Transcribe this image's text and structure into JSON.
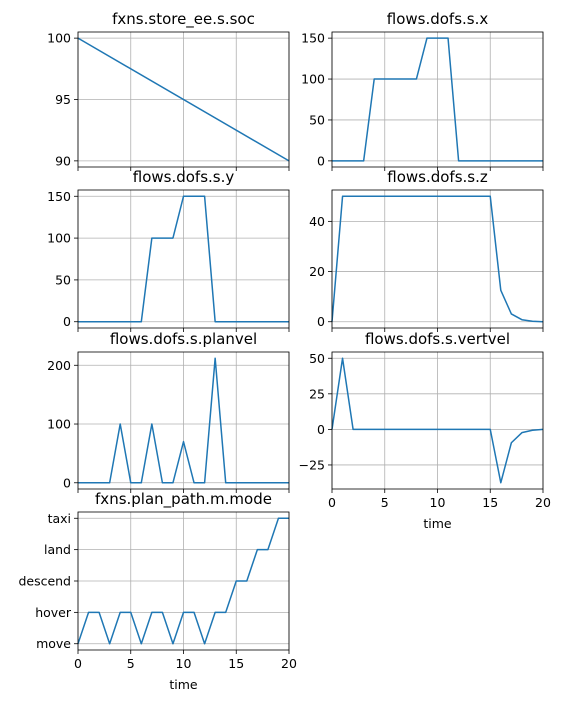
{
  "colors": {
    "line": "#1f77b4",
    "grid": "#b0b0b0",
    "axes": "#000000",
    "background": "#ffffff"
  },
  "chart_data": [
    {
      "type": "line",
      "title": "fxns.store_ee.s.soc",
      "xlabel": "",
      "ylabel": "",
      "x": [
        0,
        20
      ],
      "series": [
        {
          "values": [
            100,
            90
          ]
        }
      ],
      "xlim": [
        0,
        20
      ],
      "ylim": [
        89.5,
        100.5
      ],
      "xticks": [
        0,
        5,
        10,
        15,
        20
      ],
      "xticklabels_visible": false,
      "yticks": [
        90,
        95,
        100
      ],
      "yticklabels": [
        "90",
        "95",
        "100"
      ],
      "grid": true
    },
    {
      "type": "line",
      "title": "flows.dofs.s.x",
      "xlabel": "",
      "ylabel": "",
      "x": [
        0,
        1,
        2,
        3,
        4,
        5,
        6,
        7,
        8,
        9,
        10,
        11,
        12,
        13,
        14,
        15,
        16,
        17,
        18,
        19,
        20
      ],
      "series": [
        {
          "values": [
            0,
            0,
            0,
            0,
            100,
            100,
            100,
            100,
            100,
            150,
            150,
            150,
            0,
            0,
            0,
            0,
            0,
            0,
            0,
            0,
            0
          ]
        }
      ],
      "xlim": [
        0,
        20
      ],
      "ylim": [
        -7.5,
        157.5
      ],
      "xticks": [
        0,
        5,
        10,
        15,
        20
      ],
      "xticklabels_visible": false,
      "yticks": [
        0,
        50,
        100,
        150
      ],
      "yticklabels": [
        "0",
        "50",
        "100",
        "150"
      ],
      "grid": true
    },
    {
      "type": "line",
      "title": "flows.dofs.s.y",
      "xlabel": "",
      "ylabel": "",
      "x": [
        0,
        1,
        2,
        3,
        4,
        5,
        6,
        7,
        8,
        9,
        10,
        11,
        12,
        13,
        14,
        15,
        16,
        17,
        18,
        19,
        20
      ],
      "series": [
        {
          "values": [
            0,
            0,
            0,
            0,
            0,
            0,
            0,
            100,
            100,
            100,
            150,
            150,
            150,
            0,
            0,
            0,
            0,
            0,
            0,
            0,
            0
          ]
        }
      ],
      "xlim": [
        0,
        20
      ],
      "ylim": [
        -7.5,
        157.5
      ],
      "xticks": [
        0,
        5,
        10,
        15,
        20
      ],
      "xticklabels_visible": false,
      "yticks": [
        0,
        50,
        100,
        150
      ],
      "yticklabels": [
        "0",
        "50",
        "100",
        "150"
      ],
      "grid": true
    },
    {
      "type": "line",
      "title": "flows.dofs.s.z",
      "xlabel": "",
      "ylabel": "",
      "x": [
        0,
        1,
        2,
        3,
        4,
        5,
        6,
        7,
        8,
        9,
        10,
        11,
        12,
        13,
        14,
        15,
        16,
        17,
        18,
        19,
        20
      ],
      "series": [
        {
          "values": [
            0,
            50,
            50,
            50,
            50,
            50,
            50,
            50,
            50,
            50,
            50,
            50,
            50,
            50,
            50,
            50,
            12.5,
            3.1,
            0.8,
            0.2,
            0
          ]
        }
      ],
      "xlim": [
        0,
        20
      ],
      "ylim": [
        -2.5,
        52.5
      ],
      "xticks": [
        0,
        5,
        10,
        15,
        20
      ],
      "xticklabels_visible": false,
      "yticks": [
        0,
        20,
        40
      ],
      "yticklabels": [
        "0",
        "20",
        "40"
      ],
      "grid": true
    },
    {
      "type": "line",
      "title": "flows.dofs.s.planvel",
      "xlabel": "",
      "ylabel": "",
      "x": [
        0,
        1,
        2,
        3,
        4,
        5,
        6,
        7,
        8,
        9,
        10,
        11,
        12,
        13,
        14,
        15,
        16,
        17,
        18,
        19,
        20
      ],
      "series": [
        {
          "values": [
            0,
            0,
            0,
            0,
            100,
            0,
            0,
            100,
            0,
            0,
            70,
            0,
            0,
            212,
            0,
            0,
            0,
            0,
            0,
            0,
            0
          ]
        }
      ],
      "xlim": [
        0,
        20
      ],
      "ylim": [
        -10.6,
        222.6
      ],
      "xticks": [
        0,
        5,
        10,
        15,
        20
      ],
      "xticklabels_visible": false,
      "yticks": [
        0,
        100,
        200
      ],
      "yticklabels": [
        "0",
        "100",
        "200"
      ],
      "grid": true
    },
    {
      "type": "line",
      "title": "flows.dofs.s.vertvel",
      "xlabel": "time",
      "ylabel": "",
      "x": [
        0,
        1,
        2,
        3,
        4,
        5,
        6,
        7,
        8,
        9,
        10,
        11,
        12,
        13,
        14,
        15,
        16,
        17,
        18,
        19,
        20
      ],
      "series": [
        {
          "values": [
            0,
            50,
            0,
            0,
            0,
            0,
            0,
            0,
            0,
            0,
            0,
            0,
            0,
            0,
            0,
            0,
            -37.5,
            -9.4,
            -2.3,
            -0.6,
            0
          ]
        }
      ],
      "xlim": [
        0,
        20
      ],
      "ylim": [
        -41.9,
        54.4
      ],
      "xticks": [
        0,
        5,
        10,
        15,
        20
      ],
      "xticklabels_visible": true,
      "xticklabels": [
        "0",
        "5",
        "10",
        "15",
        "20"
      ],
      "yticks": [
        -25,
        0,
        25,
        50
      ],
      "yticklabels": [
        "−25",
        "0",
        "25",
        "50"
      ],
      "grid": true
    },
    {
      "type": "line",
      "title": "fxns.plan_path.m.mode",
      "xlabel": "time",
      "ylabel": "",
      "x": [
        0,
        1,
        2,
        3,
        4,
        5,
        6,
        7,
        8,
        9,
        10,
        11,
        12,
        13,
        14,
        15,
        16,
        17,
        18,
        19,
        20
      ],
      "series": [
        {
          "values": [
            0,
            1,
            1,
            0,
            1,
            1,
            0,
            1,
            1,
            0,
            1,
            1,
            0,
            1,
            1,
            2,
            2,
            3,
            3,
            4,
            4
          ]
        }
      ],
      "categories_y": [
        "move",
        "hover",
        "descend",
        "land",
        "taxi"
      ],
      "xlim": [
        0,
        20
      ],
      "ylim": [
        -0.2,
        4.2
      ],
      "xticks": [
        0,
        5,
        10,
        15,
        20
      ],
      "xticklabels_visible": true,
      "xticklabels": [
        "0",
        "5",
        "10",
        "15",
        "20"
      ],
      "yticks": [
        0,
        1,
        2,
        3,
        4
      ],
      "yticklabels": [
        "move",
        "hover",
        "descend",
        "land",
        "taxi"
      ],
      "grid": true
    }
  ]
}
